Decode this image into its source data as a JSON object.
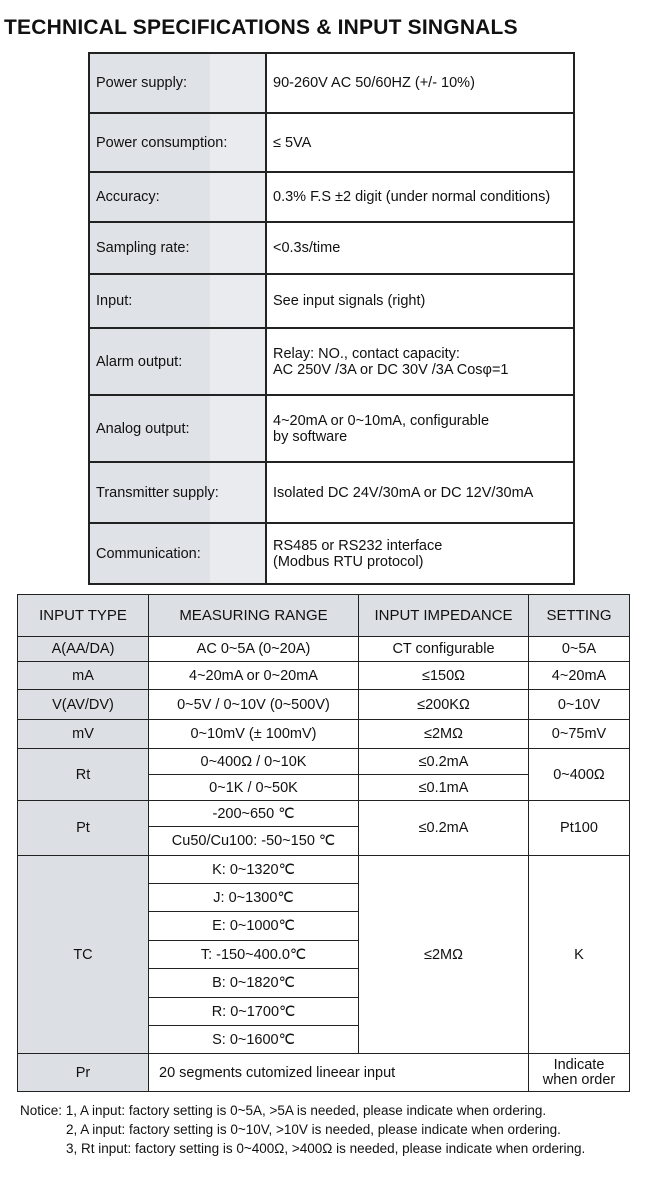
{
  "title": "TECHNICAL SPECIFICATIONS & INPUT SINGNALS",
  "specs": [
    {
      "label": "Power supply:",
      "value": "90-260V AC 50/60HZ (+/- 10%)"
    },
    {
      "label": "Power consumption:",
      "value": "≤ 5VA"
    },
    {
      "label": "Accuracy:",
      "value": "0.3% F.S ±2 digit (under normal conditions)"
    },
    {
      "label": "Sampling rate:",
      "value": "<0.3s/time"
    },
    {
      "label": "Input:",
      "value": "See input signals (right)"
    },
    {
      "label": "Alarm output:",
      "value": "Relay: NO., contact capacity:",
      "value2": "AC  250V /3A or DC 30V /3A Cosφ=1"
    },
    {
      "label": "Analog output:",
      "value": "4~20mA or 0~10mA, configurable",
      "value2": "by software"
    },
    {
      "label": "Transmitter supply:",
      "value": "Isolated DC 24V/30mA or DC 12V/30mA"
    },
    {
      "label": "Communication:",
      "value": "RS485 or RS232 interface",
      "value2": "(Modbus RTU protocol)"
    }
  ],
  "signals": {
    "headers": [
      "INPUT TYPE",
      "MEASURING RANGE",
      "INPUT IMPEDANCE",
      "SETTING"
    ],
    "a": [
      "A(AA/DA)",
      "AC 0~5A (0~20A)",
      "CT configurable",
      "0~5A"
    ],
    "ma": [
      "mA",
      "4~20mA or 0~20mA",
      "≤150Ω",
      "4~20mA"
    ],
    "v": [
      "V(AV/DV)",
      "0~5V / 0~10V (0~500V)",
      "≤200KΩ",
      "0~10V"
    ],
    "mv": [
      "mV",
      "0~10mV (± 100mV)",
      "≤2MΩ",
      "0~75mV"
    ],
    "rt": {
      "type": "Rt",
      "ranges": [
        "0~400Ω / 0~10K",
        "0~1K / 0~50K"
      ],
      "imp": [
        "≤0.2mA",
        "≤0.1mA"
      ],
      "setting": "0~400Ω"
    },
    "pt": {
      "type": "Pt",
      "ranges": [
        "-200~650 ℃",
        "Cu50/Cu100: -50~150 ℃"
      ],
      "imp": "≤0.2mA",
      "setting": "Pt100"
    },
    "tc": {
      "type": "TC",
      "ranges": [
        "K: 0~1320℃",
        "J: 0~1300℃",
        "E: 0~1000℃",
        "T: -150~400.0℃",
        "B: 0~1820℃",
        "R: 0~1700℃",
        "S: 0~1600℃"
      ],
      "imp": "≤2MΩ",
      "setting": "K"
    },
    "pr": {
      "type": "Pr",
      "range": "20 segments cutomized  lineear input",
      "setting1": "Indicate",
      "setting2": "when order"
    }
  },
  "notice": [
    "Notice: 1, A input: factory setting is 0~5A,  >5A is needed, please indicate when ordering.",
    "2, A input: factory setting is 0~10V, >10V is needed, please indicate when ordering.",
    "3, Rt input: factory setting is 0~400Ω, >400Ω is needed, please indicate when ordering."
  ]
}
